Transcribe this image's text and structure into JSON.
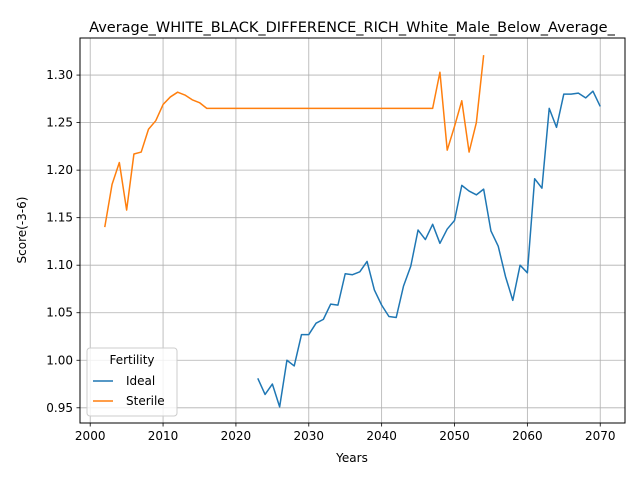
{
  "chart_data": {
    "type": "line",
    "title": "Average_WHITE_BLACK_DIFFERENCE_RICH_White_Male_Below_Average_",
    "xlabel": "Years",
    "ylabel": "Score(-3-6)",
    "xlim": [
      1998.6,
      2073.4
    ],
    "ylim": [
      0.934,
      1.339
    ],
    "xticks": [
      2000,
      2010,
      2020,
      2030,
      2040,
      2050,
      2060,
      2070
    ],
    "yticks": [
      0.95,
      1.0,
      1.05,
      1.1,
      1.15,
      1.2,
      1.25,
      1.3
    ],
    "xtick_labels": [
      "2000",
      "2010",
      "2020",
      "2030",
      "2040",
      "2050",
      "2060",
      "2070"
    ],
    "ytick_labels": [
      "0.95",
      "1.00",
      "1.05",
      "1.10",
      "1.15",
      "1.20",
      "1.25",
      "1.30"
    ],
    "grid": true,
    "legend": {
      "title": "Fertility",
      "placement": "lower-left"
    },
    "series": [
      {
        "name": "Ideal",
        "color": "#1f77b4",
        "x": [
          2023,
          2024,
          2025,
          2026,
          2027,
          2028,
          2029,
          2030,
          2031,
          2032,
          2033,
          2034,
          2035,
          2036,
          2037,
          2038,
          2039,
          2040,
          2041,
          2042,
          2043,
          2044,
          2045,
          2046,
          2047,
          2048,
          2049,
          2050,
          2051,
          2052,
          2053,
          2054,
          2055,
          2056,
          2057,
          2058,
          2059,
          2060,
          2061,
          2062,
          2063,
          2064,
          2065,
          2066,
          2067,
          2068,
          2069,
          2070
        ],
        "y": [
          0.981,
          0.964,
          0.975,
          0.951,
          1.0,
          0.994,
          1.027,
          1.027,
          1.039,
          1.043,
          1.059,
          1.058,
          1.091,
          1.09,
          1.093,
          1.104,
          1.074,
          1.058,
          1.046,
          1.045,
          1.078,
          1.099,
          1.137,
          1.127,
          1.143,
          1.123,
          1.138,
          1.147,
          1.184,
          1.178,
          1.174,
          1.18,
          1.136,
          1.12,
          1.088,
          1.063,
          1.1,
          1.092,
          1.191,
          1.181,
          1.265,
          1.245,
          1.28,
          1.28,
          1.281,
          1.276,
          1.283,
          1.267
        ]
      },
      {
        "name": "Sterile",
        "color": "#ff7f0e",
        "x": [
          2002,
          2003,
          2004,
          2005,
          2006,
          2007,
          2008,
          2009,
          2010,
          2011,
          2012,
          2013,
          2014,
          2015,
          2016,
          2017,
          2018,
          2019,
          2020,
          2021,
          2022,
          2023,
          2024,
          2025,
          2026,
          2027,
          2028,
          2029,
          2030,
          2031,
          2032,
          2033,
          2034,
          2035,
          2036,
          2037,
          2038,
          2039,
          2040,
          2041,
          2042,
          2043,
          2044,
          2045,
          2046,
          2047,
          2048,
          2049,
          2050,
          2051,
          2052,
          2053,
          2054
        ],
        "y": [
          1.14,
          1.185,
          1.208,
          1.158,
          1.217,
          1.219,
          1.243,
          1.252,
          1.269,
          1.277,
          1.282,
          1.279,
          1.274,
          1.271,
          1.265,
          1.265,
          1.265,
          1.265,
          1.265,
          1.265,
          1.265,
          1.265,
          1.265,
          1.265,
          1.265,
          1.265,
          1.265,
          1.265,
          1.265,
          1.265,
          1.265,
          1.265,
          1.265,
          1.265,
          1.265,
          1.265,
          1.265,
          1.265,
          1.265,
          1.265,
          1.265,
          1.265,
          1.265,
          1.265,
          1.265,
          1.265,
          1.303,
          1.221,
          1.246,
          1.273,
          1.219,
          1.25,
          1.321
        ]
      }
    ]
  }
}
